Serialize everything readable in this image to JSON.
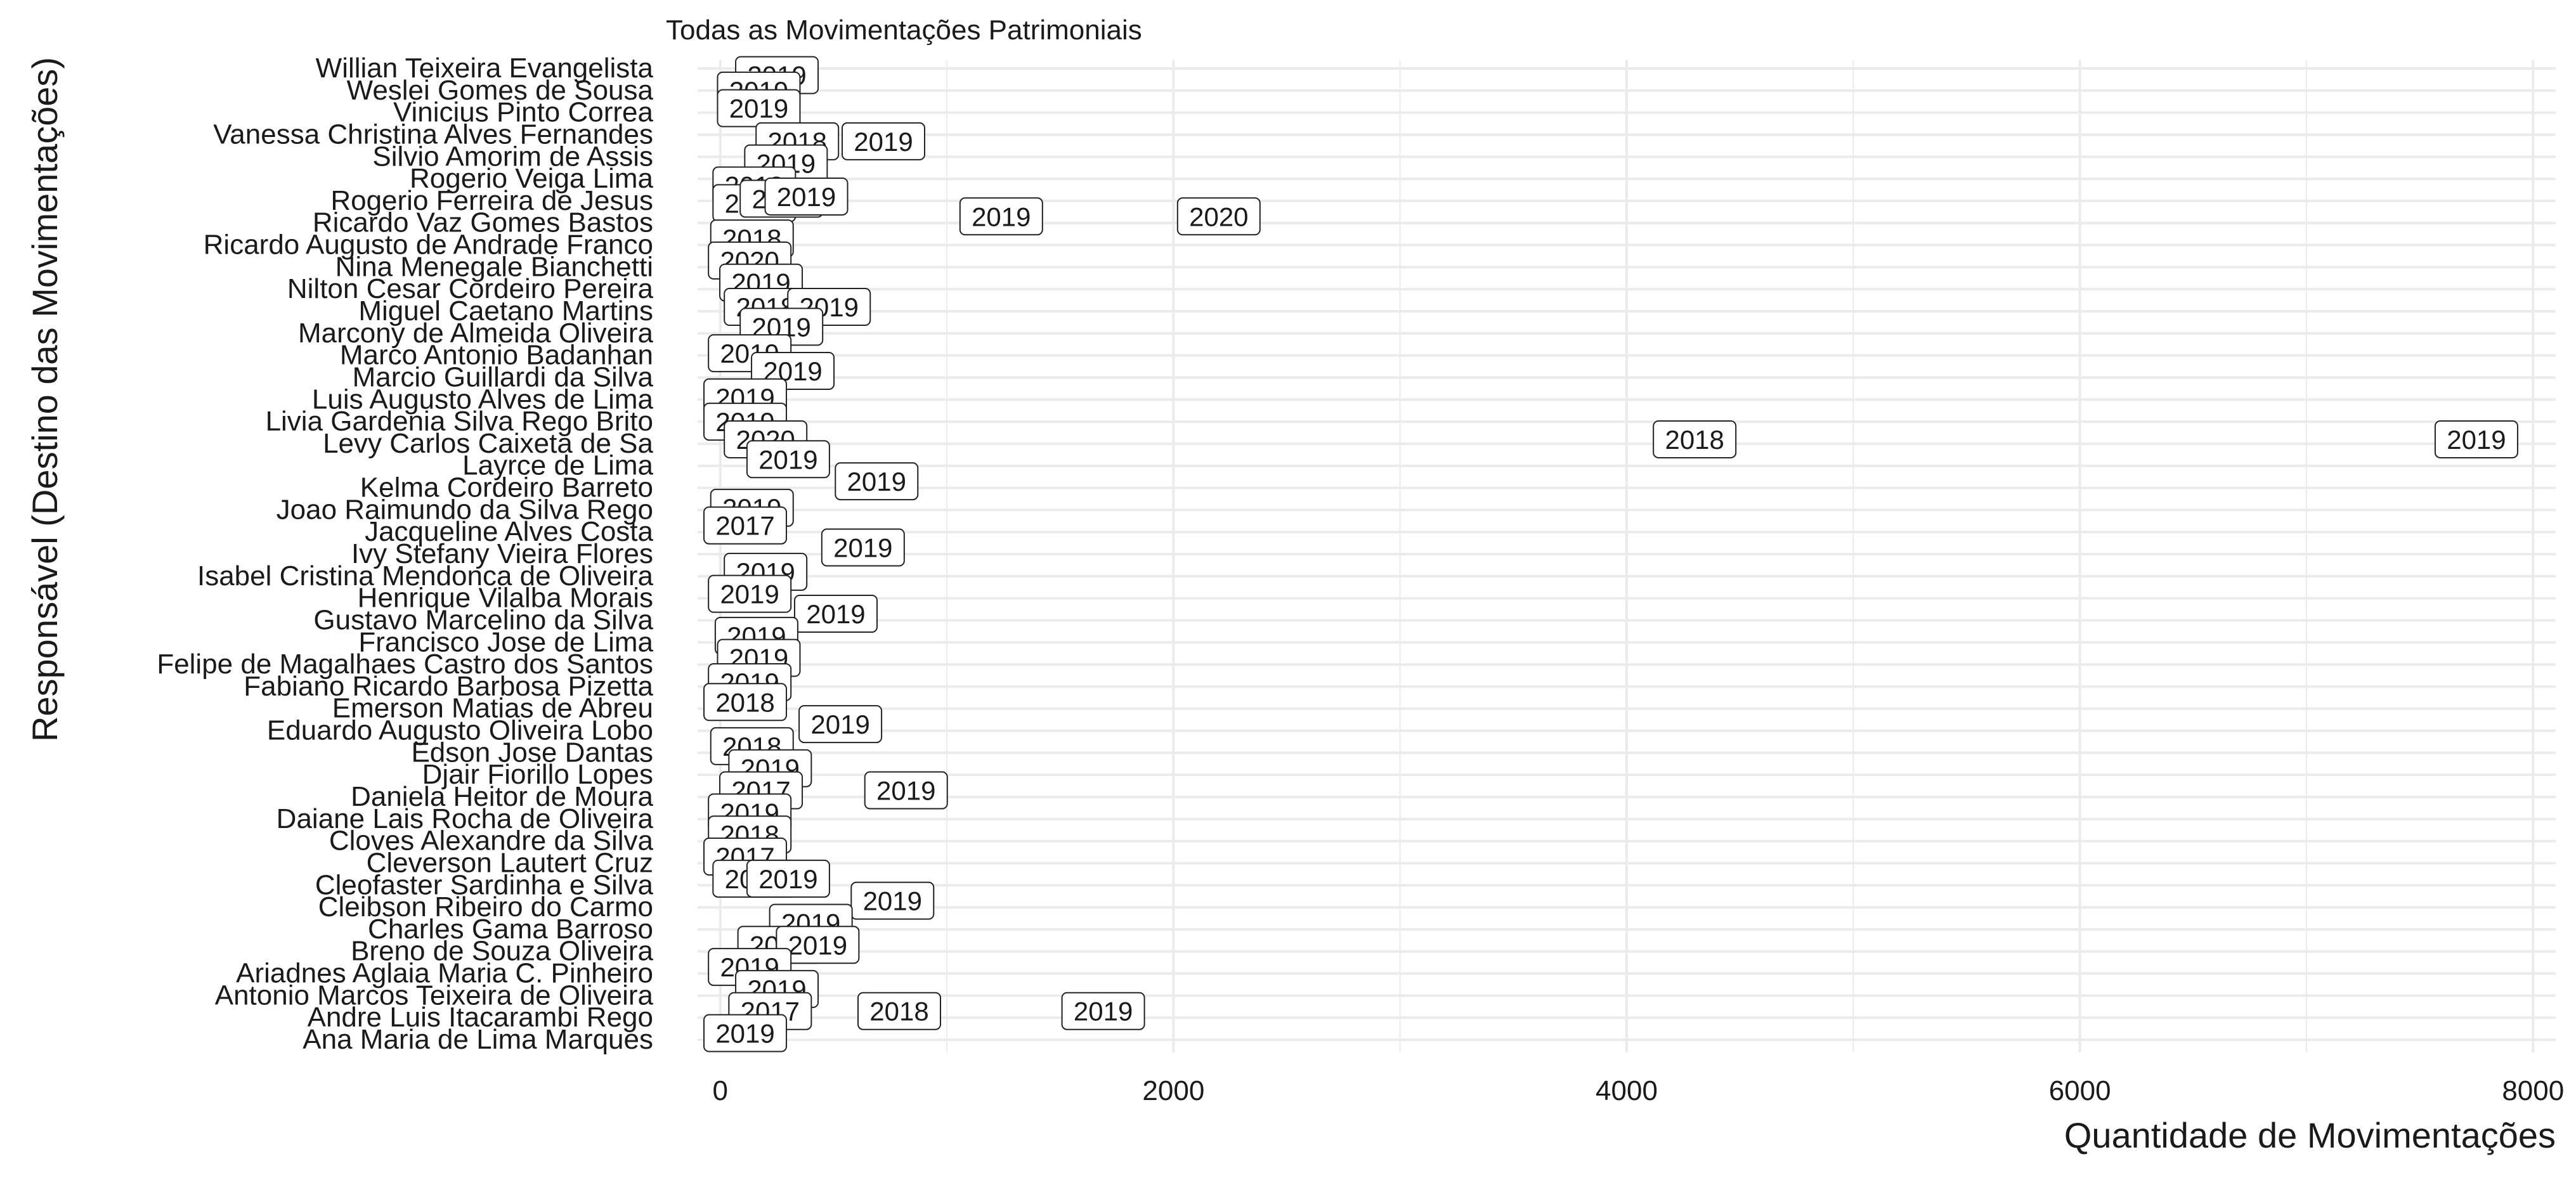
{
  "chart_data": {
    "type": "scatter",
    "title": "Todas as Movimentações Patrimoniais",
    "xlabel": "Quantidade de Movimentações",
    "ylabel": "Responsável (Destino das Movimentações)",
    "xlim": [
      -100,
      8100
    ],
    "xticks": [
      0,
      2000,
      4000,
      6000,
      8000
    ],
    "xtick_labels": [
      "0",
      "2000",
      "4000",
      "6000",
      "8000"
    ],
    "grid": true,
    "legend": "none",
    "colors": {
      "label_border": "#222222",
      "label_fill": "#ffffff",
      "grid": "#ebebeb",
      "text": "#1a1a1a"
    },
    "categories": [
      "Willian Teixeira Evangelista",
      "Weslei Gomes de Sousa",
      "Vinicius Pinto Correa",
      "Vanessa Christina Alves Fernandes",
      "Silvio Amorim de Assis",
      "Rogerio Veiga Lima",
      "Rogerio Ferreira de Jesus",
      "Ricardo Vaz Gomes Bastos",
      "Ricardo Augusto de Andrade Franco",
      "Nina Menegale Bianchetti",
      "Nilton Cesar Cordeiro Pereira",
      "Miguel Caetano Martins",
      "Marcony de Almeida Oliveira",
      "Marco Antonio Badanhan",
      "Marcio Guillardi da Silva",
      "Luis Augusto Alves de Lima",
      "Livia Gardenia Silva Rego Brito",
      "Levy Carlos Caixeta de Sa",
      "Layrce de Lima",
      "Kelma Cordeiro Barreto",
      "Joao Raimundo da Silva Rego",
      "Jacqueline Alves Costa",
      "Ivy Stefany Vieira Flores",
      "Isabel Cristina Mendonca de Oliveira",
      "Henrique Vilalba Morais",
      "Gustavo Marcelino da Silva",
      "Francisco Jose de Lima",
      "Felipe de Magalhaes Castro dos Santos",
      "Fabiano Ricardo Barbosa Pizetta",
      "Emerson Matias de Abreu",
      "Eduardo Augusto Oliveira Lobo",
      "Edson Jose Dantas",
      "Djair Fiorillo Lopes",
      "Daniela Heitor de Moura",
      "Daiane Lais Rocha de Oliveira",
      "Cloves Alexandre da Silva",
      "Cleverson Lautert Cruz",
      "Cleofaster Sardinha e Silva",
      "Cleibson Ribeiro do Carmo",
      "Charles Gama Barroso",
      "Breno de Souza Oliveira",
      "Ariadnes Aglaia Maria C. Pinheiro",
      "Antonio Marcos Teixeira de Oliveira",
      "Andre Luis Itacarambi Rego",
      "Ana Maria de Lima Marques"
    ],
    "points": [
      {
        "name": "Willian Teixeira Evangelista",
        "x": 250,
        "label": "2019",
        "dy": 0.3
      },
      {
        "name": "Weslei Gomes de Sousa",
        "x": 170,
        "label": "2019",
        "dy": 0
      },
      {
        "name": "Vinicius Pinto Correa",
        "x": 170,
        "label": "2019",
        "dy": -0.2
      },
      {
        "name": "Vanessa Christina Alves Fernandes",
        "x": 340,
        "label": "2018",
        "dy": 0.3
      },
      {
        "name": "Vanessa Christina Alves Fernandes",
        "x": 720,
        "label": "2019",
        "dy": 0.3
      },
      {
        "name": "Silvio Amorim de Assis",
        "x": 290,
        "label": "2019",
        "dy": 0.3
      },
      {
        "name": "Rogerio Veiga Lima",
        "x": 150,
        "label": "2018",
        "dy": 0.3
      },
      {
        "name": "Rogerio Ferreira de Jesus",
        "x": 150,
        "label": "2018",
        "dy": 0.1
      },
      {
        "name": "Rogerio Ferreira de Jesus",
        "x": 270,
        "label": "2019",
        "dy": -0.1
      },
      {
        "name": "Rogerio Ferreira de Jesus",
        "x": 380,
        "label": "2019",
        "dy": -0.2
      },
      {
        "name": "Ricardo Vaz Gomes Bastos",
        "x": 1240,
        "label": "2019",
        "dy": -0.3
      },
      {
        "name": "Ricardo Vaz Gomes Bastos",
        "x": 2200,
        "label": "2020",
        "dy": -0.3
      },
      {
        "name": "Ricardo Augusto de Andrade Franco",
        "x": 140,
        "label": "2018",
        "dy": -0.3
      },
      {
        "name": "Nina Menegale Bianchetti",
        "x": 130,
        "label": "2020",
        "dy": -0.3
      },
      {
        "name": "Nilton Cesar Cordeiro Pereira",
        "x": 180,
        "label": "2019",
        "dy": -0.3
      },
      {
        "name": "Miguel Caetano Martins",
        "x": 200,
        "label": "2018",
        "dy": -0.2
      },
      {
        "name": "Miguel Caetano Martins",
        "x": 480,
        "label": "2019",
        "dy": -0.2
      },
      {
        "name": "Marcony de Almeida Oliveira",
        "x": 270,
        "label": "2019",
        "dy": -0.3
      },
      {
        "name": "Marco Antonio Badanhan",
        "x": 130,
        "label": "2019",
        "dy": -0.1
      },
      {
        "name": "Marcio Guillardi da Silva",
        "x": 320,
        "label": "2019",
        "dy": -0.3
      },
      {
        "name": "Luis Augusto Alves de Lima",
        "x": 110,
        "label": "2019",
        "dy": -0.1
      },
      {
        "name": "Livia Gardenia Silva Rego Brito",
        "x": 110,
        "label": "2019",
        "dy": 0
      },
      {
        "name": "Levy Carlos Caixeta de Sa",
        "x": 200,
        "label": "2020",
        "dy": -0.2
      },
      {
        "name": "Levy Carlos Caixeta de Sa",
        "x": 4300,
        "label": "2018",
        "dy": -0.2
      },
      {
        "name": "Levy Carlos Caixeta de Sa",
        "x": 7750,
        "label": "2019",
        "dy": -0.2
      },
      {
        "name": "Layrce de Lima",
        "x": 300,
        "label": "2019",
        "dy": -0.3
      },
      {
        "name": "Kelma Cordeiro Barreto",
        "x": 690,
        "label": "2019",
        "dy": -0.3
      },
      {
        "name": "Joao Raimundo da Silva Rego",
        "x": 140,
        "label": "2019",
        "dy": -0.1
      },
      {
        "name": "Jacqueline Alves Costa",
        "x": 110,
        "label": "2017",
        "dy": -0.3
      },
      {
        "name": "Ivy Stefany Vieira Flores",
        "x": 630,
        "label": "2019",
        "dy": -0.3
      },
      {
        "name": "Isabel Cristina Mendonca de Oliveira",
        "x": 200,
        "label": "2019",
        "dy": -0.2
      },
      {
        "name": "Henrique Vilalba Morais",
        "x": 130,
        "label": "2019",
        "dy": -0.2
      },
      {
        "name": "Gustavo Marcelino da Silva",
        "x": 510,
        "label": "2019",
        "dy": -0.3
      },
      {
        "name": "Francisco Jose de Lima",
        "x": 160,
        "label": "2019",
        "dy": -0.3
      },
      {
        "name": "Felipe de Magalhaes Castro dos Santos",
        "x": 170,
        "label": "2019",
        "dy": -0.3
      },
      {
        "name": "Fabiano Ricardo Barbosa Pizetta",
        "x": 130,
        "label": "2019",
        "dy": -0.2
      },
      {
        "name": "Emerson Matias de Abreu",
        "x": 110,
        "label": "2018",
        "dy": -0.3
      },
      {
        "name": "Eduardo Augusto Oliveira Lobo",
        "x": 530,
        "label": "2019",
        "dy": -0.3
      },
      {
        "name": "Edson Jose Dantas",
        "x": 140,
        "label": "2018",
        "dy": -0.3
      },
      {
        "name": "Djair Fiorillo Lopes",
        "x": 220,
        "label": "2019",
        "dy": -0.3
      },
      {
        "name": "Daniela Heitor de Moura",
        "x": 180,
        "label": "2017",
        "dy": -0.3
      },
      {
        "name": "Daniela Heitor de Moura",
        "x": 820,
        "label": "2019",
        "dy": -0.3
      },
      {
        "name": "Daiane Lais Rocha de Oliveira",
        "x": 130,
        "label": "2019",
        "dy": -0.3
      },
      {
        "name": "Cloves Alexandre da Silva",
        "x": 130,
        "label": "2018",
        "dy": -0.3
      },
      {
        "name": "Cleverson Lautert Cruz",
        "x": 110,
        "label": "2017",
        "dy": -0.3
      },
      {
        "name": "Cleofaster Sardinha e Silva",
        "x": 150,
        "label": "2019",
        "dy": -0.3
      },
      {
        "name": "Cleofaster Sardinha e Silva",
        "x": 300,
        "label": "2019",
        "dy": -0.3
      },
      {
        "name": "Cleibson Ribeiro do Carmo",
        "x": 760,
        "label": "2019",
        "dy": -0.3
      },
      {
        "name": "Charles Gama Barroso",
        "x": 400,
        "label": "2019",
        "dy": -0.3
      },
      {
        "name": "Breno de Souza Oliveira",
        "x": 260,
        "label": "2019",
        "dy": -0.3
      },
      {
        "name": "Breno de Souza Oliveira",
        "x": 430,
        "label": "2019",
        "dy": -0.3
      },
      {
        "name": "Ariadnes Aglaia Maria C. Pinheiro",
        "x": 130,
        "label": "2019",
        "dy": -0.3
      },
      {
        "name": "Antonio Marcos Teixeira de Oliveira",
        "x": 250,
        "label": "2019",
        "dy": -0.3
      },
      {
        "name": "Andre Luis Itacarambi Rego",
        "x": 220,
        "label": "2017",
        "dy": -0.3
      },
      {
        "name": "Andre Luis Itacarambi Rego",
        "x": 790,
        "label": "2018",
        "dy": -0.3
      },
      {
        "name": "Andre Luis Itacarambi Rego",
        "x": 1690,
        "label": "2019",
        "dy": -0.3
      },
      {
        "name": "Ana Maria de Lima Marques",
        "x": 110,
        "label": "2019",
        "dy": -0.3
      }
    ]
  }
}
